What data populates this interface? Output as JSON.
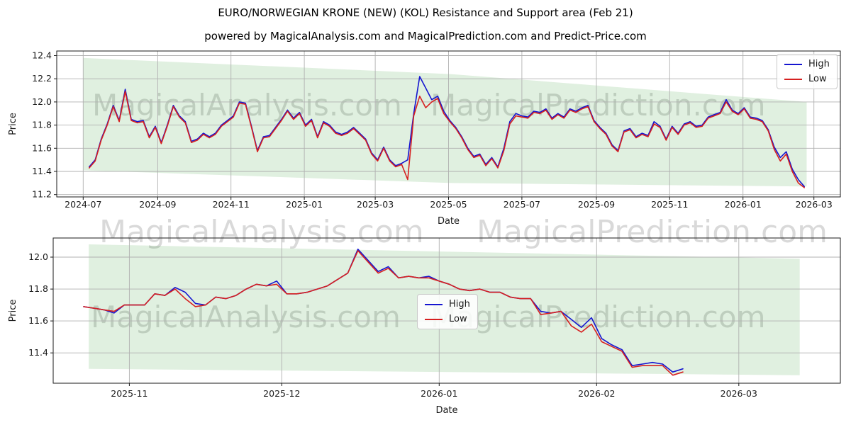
{
  "header": {
    "title": "EURO/NORWEGIAN KRONE (NEW) (KOL) Resistance and Support area (Feb 21)",
    "subtitle": "powered by MagicalAnalysis.com and MagicalPrediction.com and Predict-Price.com"
  },
  "watermark": {
    "analysis": "MagicalAnalysis.com",
    "prediction": "MagicalPrediction.com"
  },
  "legend": {
    "items": [
      {
        "label": "High",
        "color_key": "high"
      },
      {
        "label": "Low",
        "color_key": "low"
      }
    ]
  },
  "colors": {
    "high": "#1515d0",
    "low": "#d62020",
    "band_fill": "#008000",
    "band_opacity": 0.12,
    "grid": "#b0b0b0",
    "frame": "#1a1a1a",
    "tick_text": "#1a1a1a"
  },
  "chart_data": [
    {
      "type": "line",
      "panel": "top",
      "xlabel": "Date",
      "ylabel": "Price",
      "grid": true,
      "legend_loc": "upper right",
      "xlim": [
        "2024-06-09",
        "2026-03-23"
      ],
      "ylim": [
        11.18,
        12.44
      ],
      "x_ticks": [
        {
          "date": "2024-07-01",
          "label": "2024-07"
        },
        {
          "date": "2024-09-01",
          "label": "2024-09"
        },
        {
          "date": "2024-11-01",
          "label": "2024-11"
        },
        {
          "date": "2025-01-01",
          "label": "2025-01"
        },
        {
          "date": "2025-03-01",
          "label": "2025-03"
        },
        {
          "date": "2025-05-01",
          "label": "2025-05"
        },
        {
          "date": "2025-07-01",
          "label": "2025-07"
        },
        {
          "date": "2025-09-01",
          "label": "2025-09"
        },
        {
          "date": "2025-11-01",
          "label": "2025-11"
        },
        {
          "date": "2026-01-01",
          "label": "2026-01"
        },
        {
          "date": "2026-03-01",
          "label": "2026-03"
        }
      ],
      "y_ticks": [
        "11.2",
        "11.4",
        "11.6",
        "11.8",
        "12.0",
        "12.2",
        "12.4"
      ],
      "band": {
        "x": [
          "2024-07-01",
          "2025-05-04",
          "2026-02-23"
        ],
        "upper": [
          12.38,
          12.24,
          12.0
        ],
        "lower": [
          11.41,
          11.3,
          11.27
        ]
      },
      "series_x": {
        "start": "2024-07-06",
        "step_days": 5,
        "count": 120
      },
      "series": [
        {
          "name": "High",
          "color_key": "high",
          "values": [
            11.44,
            11.5,
            11.68,
            11.81,
            11.97,
            11.84,
            12.11,
            11.85,
            11.83,
            11.84,
            11.7,
            11.79,
            11.65,
            11.8,
            11.97,
            11.88,
            11.83,
            11.66,
            11.68,
            11.73,
            11.7,
            11.73,
            11.8,
            11.84,
            11.88,
            12.0,
            11.99,
            11.79,
            11.58,
            11.7,
            11.71,
            11.78,
            11.85,
            11.93,
            11.86,
            11.91,
            11.8,
            11.85,
            11.7,
            11.83,
            11.8,
            11.74,
            11.72,
            11.74,
            11.78,
            11.73,
            11.68,
            11.56,
            11.5,
            11.61,
            11.5,
            11.45,
            11.47,
            11.5,
            11.9,
            12.22,
            12.12,
            12.02,
            12.05,
            11.92,
            11.84,
            11.78,
            11.7,
            11.6,
            11.53,
            11.55,
            11.46,
            11.52,
            11.44,
            11.6,
            11.83,
            11.9,
            11.88,
            11.87,
            11.92,
            11.91,
            11.94,
            11.86,
            11.9,
            11.87,
            11.94,
            11.92,
            11.95,
            11.97,
            11.84,
            11.78,
            11.73,
            11.63,
            11.58,
            11.75,
            11.77,
            11.7,
            11.73,
            11.71,
            11.83,
            11.79,
            11.68,
            11.79,
            11.73,
            11.81,
            11.83,
            11.79,
            11.8,
            11.87,
            11.89,
            11.91,
            12.02,
            11.93,
            11.9,
            11.95,
            11.87,
            11.86,
            11.84,
            11.76,
            11.61,
            11.52,
            11.57,
            11.42,
            11.33,
            11.27
          ]
        },
        {
          "name": "Low",
          "color_key": "low",
          "values": [
            11.43,
            11.49,
            11.67,
            11.8,
            11.96,
            11.83,
            12.09,
            11.84,
            11.82,
            11.83,
            11.69,
            11.78,
            11.64,
            11.79,
            11.96,
            11.87,
            11.82,
            11.65,
            11.67,
            11.72,
            11.69,
            11.72,
            11.79,
            11.83,
            11.87,
            11.99,
            11.98,
            11.78,
            11.57,
            11.69,
            11.7,
            11.77,
            11.84,
            11.92,
            11.85,
            11.9,
            11.79,
            11.84,
            11.69,
            11.82,
            11.79,
            11.73,
            11.71,
            11.73,
            11.77,
            11.72,
            11.67,
            11.55,
            11.49,
            11.6,
            11.49,
            11.44,
            11.46,
            11.33,
            11.88,
            12.05,
            11.95,
            12.0,
            12.03,
            11.9,
            11.83,
            11.77,
            11.69,
            11.59,
            11.52,
            11.54,
            11.45,
            11.51,
            11.43,
            11.58,
            11.81,
            11.88,
            11.87,
            11.86,
            11.91,
            11.9,
            11.93,
            11.85,
            11.89,
            11.86,
            11.93,
            11.91,
            11.94,
            11.96,
            11.83,
            11.77,
            11.72,
            11.62,
            11.57,
            11.74,
            11.76,
            11.69,
            11.72,
            11.7,
            11.81,
            11.78,
            11.67,
            11.78,
            11.72,
            11.8,
            11.82,
            11.78,
            11.79,
            11.86,
            11.88,
            11.9,
            12.0,
            11.92,
            11.89,
            11.94,
            11.86,
            11.85,
            11.83,
            11.75,
            11.59,
            11.49,
            11.55,
            11.4,
            11.3,
            11.26
          ]
        }
      ]
    },
    {
      "type": "line",
      "panel": "bottom",
      "xlabel": "Date",
      "ylabel": "Price",
      "grid": true,
      "legend_loc": "center",
      "xlim": [
        "2025-10-17",
        "2026-03-21"
      ],
      "ylim": [
        11.21,
        12.12
      ],
      "x_ticks": [
        {
          "date": "2025-11-01",
          "label": "2025-11"
        },
        {
          "date": "2025-12-01",
          "label": "2025-12"
        },
        {
          "date": "2026-01-01",
          "label": "2026-01"
        },
        {
          "date": "2026-02-01",
          "label": "2026-02"
        },
        {
          "date": "2026-03-01",
          "label": "2026-03"
        }
      ],
      "y_ticks": [
        "11.4",
        "11.6",
        "11.8",
        "12.0"
      ],
      "band": {
        "x": [
          "2025-10-24",
          "2026-03-13"
        ],
        "upper": [
          12.08,
          11.99
        ],
        "lower": [
          11.3,
          11.26
        ]
      },
      "series_x": {
        "start": "2025-10-23",
        "step_days": 2,
        "count": 60
      },
      "series": [
        {
          "name": "High",
          "color_key": "high",
          "values": [
            11.69,
            11.68,
            11.67,
            11.65,
            11.7,
            11.7,
            11.7,
            11.77,
            11.76,
            11.81,
            11.78,
            11.71,
            11.7,
            11.75,
            11.74,
            11.76,
            11.8,
            11.83,
            11.82,
            11.85,
            11.77,
            11.77,
            11.78,
            11.8,
            11.82,
            11.86,
            11.9,
            12.05,
            11.98,
            11.91,
            11.94,
            11.87,
            11.88,
            11.87,
            11.88,
            11.85,
            11.83,
            11.8,
            11.79,
            11.8,
            11.78,
            11.78,
            11.75,
            11.74,
            11.74,
            11.66,
            11.65,
            11.66,
            11.61,
            11.56,
            11.62,
            11.49,
            11.45,
            11.42,
            11.32,
            11.33,
            11.34,
            11.33,
            11.28,
            11.3
          ]
        },
        {
          "name": "Low",
          "color_key": "low",
          "values": [
            11.69,
            11.68,
            11.67,
            11.66,
            11.7,
            11.7,
            11.7,
            11.77,
            11.76,
            11.8,
            11.74,
            11.69,
            11.7,
            11.75,
            11.74,
            11.76,
            11.8,
            11.83,
            11.82,
            11.83,
            11.77,
            11.77,
            11.78,
            11.8,
            11.82,
            11.86,
            11.9,
            12.04,
            11.97,
            11.9,
            11.93,
            11.87,
            11.88,
            11.87,
            11.87,
            11.85,
            11.83,
            11.8,
            11.79,
            11.8,
            11.78,
            11.78,
            11.75,
            11.74,
            11.74,
            11.64,
            11.65,
            11.66,
            11.57,
            11.53,
            11.58,
            11.47,
            11.44,
            11.41,
            11.31,
            11.32,
            11.32,
            11.32,
            11.26,
            11.28
          ]
        }
      ]
    }
  ]
}
